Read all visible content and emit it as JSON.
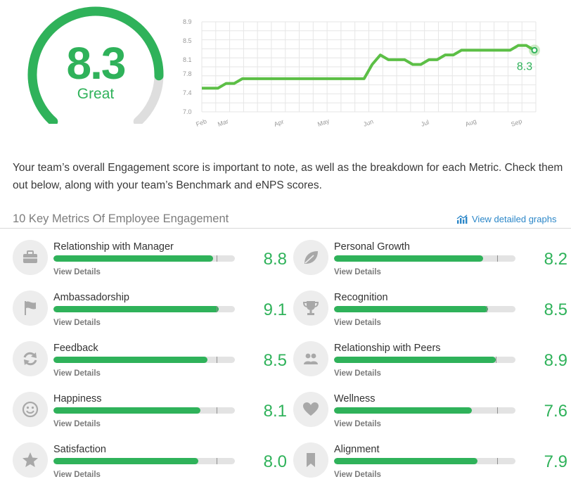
{
  "summary": {
    "score": "8.3",
    "label": "Great",
    "gauge_fraction": 0.83
  },
  "trend": {
    "y_ticks": [
      "8.9",
      "8.5",
      "8.1",
      "7.8",
      "7.4",
      "7.0"
    ],
    "x_ticks": [
      "Feb",
      "Mar",
      "Apr",
      "May",
      "Jun",
      "Jul",
      "Aug",
      "Sep"
    ],
    "end_label": "8.3",
    "points": [
      7.5,
      7.5,
      7.5,
      7.6,
      7.6,
      7.7,
      7.7,
      7.7,
      7.7,
      7.7,
      7.7,
      7.7,
      7.7,
      7.7,
      7.7,
      7.7,
      7.7,
      7.7,
      7.7,
      7.7,
      7.7,
      8.0,
      8.2,
      8.1,
      8.1,
      8.1,
      8.0,
      8.0,
      8.1,
      8.1,
      8.2,
      8.2,
      8.3,
      8.3,
      8.3,
      8.3,
      8.3,
      8.3,
      8.3,
      8.4,
      8.4,
      8.3
    ]
  },
  "intro": "Your team’s overall Engagement score is important to note, as well as the breakdown for each Metric. Check them out below, along with your team’s Benchmark and eNPS scores.",
  "metrics_header": {
    "title": "10 Key Metrics Of Employee Engagement",
    "link": "View detailed graphs"
  },
  "metrics": [
    {
      "name": "Relationship with Manager",
      "score": "8.8",
      "fill": 0.88,
      "bench": 0.9,
      "details": "View Details",
      "icon": "briefcase-icon"
    },
    {
      "name": "Personal Growth",
      "score": "8.2",
      "fill": 0.82,
      "bench": 0.9,
      "details": "View Details",
      "icon": "leaf-icon"
    },
    {
      "name": "Ambassadorship",
      "score": "9.1",
      "fill": 0.91,
      "bench": 0.9,
      "details": "View Details",
      "icon": "flag-icon"
    },
    {
      "name": "Recognition",
      "score": "8.5",
      "fill": 0.85,
      "bench": 0.84,
      "details": "View Details",
      "icon": "trophy-icon"
    },
    {
      "name": "Feedback",
      "score": "8.5",
      "fill": 0.85,
      "bench": 0.9,
      "details": "View Details",
      "icon": "refresh-icon"
    },
    {
      "name": "Relationship with Peers",
      "score": "8.9",
      "fill": 0.89,
      "bench": 0.89,
      "details": "View Details",
      "icon": "people-icon"
    },
    {
      "name": "Happiness",
      "score": "8.1",
      "fill": 0.81,
      "bench": 0.9,
      "details": "View Details",
      "icon": "smiley-icon"
    },
    {
      "name": "Wellness",
      "score": "7.6",
      "fill": 0.76,
      "bench": 0.9,
      "details": "View Details",
      "icon": "heart-icon"
    },
    {
      "name": "Satisfaction",
      "score": "8.0",
      "fill": 0.8,
      "bench": 0.9,
      "details": "View Details",
      "icon": "star-icon"
    },
    {
      "name": "Alignment",
      "score": "7.9",
      "fill": 0.79,
      "bench": 0.9,
      "details": "View Details",
      "icon": "bookmark-icon"
    }
  ],
  "colors": {
    "accent": "#2fb25a",
    "link": "#2c87c8",
    "icon_bg": "#ededed",
    "icon_fg": "#a8a8a8",
    "track": "#e3e3e3",
    "grid": "#e6e6e6"
  }
}
